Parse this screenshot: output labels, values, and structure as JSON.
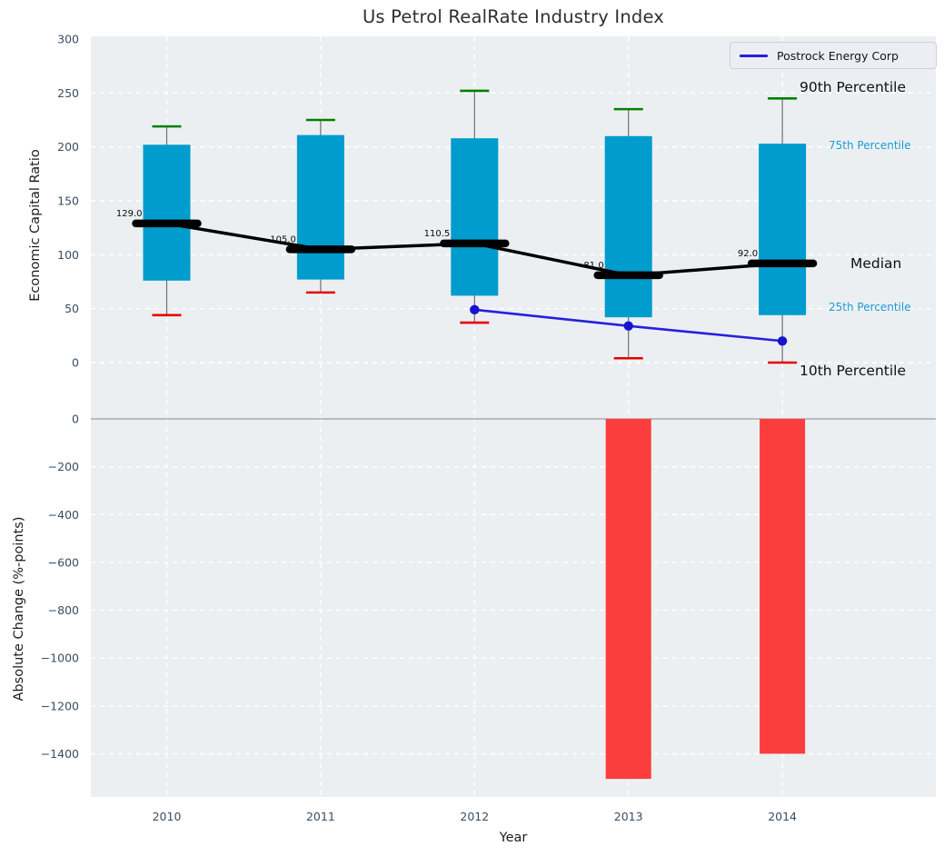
{
  "title": "Us Petrol RealRate Industry Index",
  "legend": {
    "label": "Postrock Energy Corp",
    "line_color": "#2222dd"
  },
  "annotations": {
    "p90": "90th Percentile",
    "p75": "75th Percentile",
    "median": "Median",
    "p25": "25th Percentile",
    "p10": "10th Percentile"
  },
  "colors": {
    "box": "#009ccd",
    "cap_high": "#008000",
    "cap_low": "#e60000",
    "whisker": "#6e6e6e",
    "median_line": "#000000",
    "company_line": "#2222dd",
    "company_marker": "#1414cf",
    "bar_negative": "#fb3d3d",
    "plot_bg": "#eceff1",
    "grid": "#ffffff",
    "zero_line": "#aaaaaa",
    "tick_text": "#3b4d63",
    "percentile_label": "#1a9cd8"
  },
  "chart_data": [
    {
      "type": "boxplot+line",
      "panel": "top",
      "title": "Us Petrol RealRate Industry Index",
      "ylabel": "Economic Capital Ratio",
      "yticks": [
        300,
        250,
        200,
        150,
        100,
        50,
        0
      ],
      "ylim": [
        -50,
        300
      ],
      "grid": true,
      "categories": [
        "2010",
        "2011",
        "2012",
        "2013",
        "2014"
      ],
      "boxes": [
        {
          "year": "2010",
          "p90": 219,
          "p75": 202,
          "median": 129.0,
          "p25": 76,
          "p10": 44,
          "median_label": "129.0"
        },
        {
          "year": "2011",
          "p90": 225,
          "p75": 211,
          "median": 105.0,
          "p25": 77,
          "p10": 65,
          "median_label": "105.0"
        },
        {
          "year": "2012",
          "p90": 252,
          "p75": 208,
          "median": 110.5,
          "p25": 62,
          "p10": 37,
          "median_label": "110.5"
        },
        {
          "year": "2013",
          "p90": 235,
          "p75": 210,
          "median": 81.0,
          "p25": 42,
          "p10": 4,
          "median_label": "81.0"
        },
        {
          "year": "2014",
          "p90": 245,
          "p75": 203,
          "median": 92.0,
          "p25": 44,
          "p10": 0,
          "median_label": "92.0"
        }
      ],
      "series": [
        {
          "name": "Postrock Energy Corp",
          "x": [
            "2012",
            "2013",
            "2014"
          ],
          "y": [
            49,
            34,
            20
          ]
        }
      ],
      "legend_position": "upper right"
    },
    {
      "type": "bar",
      "panel": "bottom",
      "xlabel": "Year",
      "ylabel": "Absolute Change (%-points)",
      "yticks": [
        0,
        -200,
        -400,
        -600,
        -800,
        -1000,
        -1200,
        -1400
      ],
      "ylim": [
        -1560,
        30
      ],
      "grid": true,
      "categories": [
        "2010",
        "2011",
        "2012",
        "2013",
        "2014"
      ],
      "values": [
        null,
        null,
        null,
        -1505,
        -1400
      ]
    }
  ]
}
